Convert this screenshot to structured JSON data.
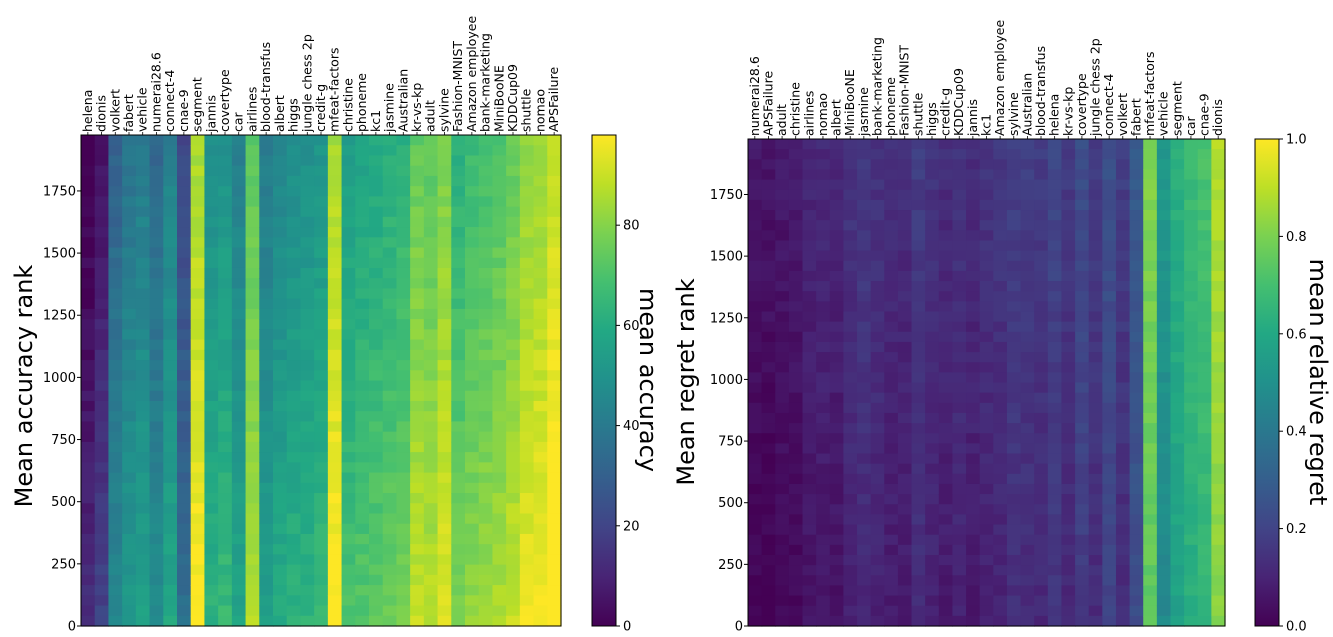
{
  "chart_data": [
    {
      "type": "heatmap",
      "ylabel": "Mean accuracy rank",
      "columns": [
        "helena",
        "dionis",
        "volkert",
        "fabert",
        "vehicle",
        "numerai28.6",
        "connect-4",
        "cnae-9",
        "segment",
        "jannis",
        "covertype",
        "car",
        "airlines",
        "blood-transfus",
        "albert",
        "higgs",
        "jungle chess 2p",
        "credit-g",
        "mfeat-factors",
        "christine",
        "phoneme",
        "kc1",
        "jasmine",
        "Australian",
        "kr-vs-kp",
        "adult",
        "sylvine",
        "Fashion-MNIST",
        "Amazon employee",
        "bank-marketing",
        "MiniBooNE",
        "KDDCup09",
        "shuttle",
        "nomao",
        "APSFailure"
      ],
      "column_mean_values": [
        5,
        12,
        38,
        45,
        48,
        40,
        50,
        28,
        92,
        55,
        58,
        50,
        80,
        48,
        52,
        55,
        56,
        58,
        92,
        62,
        64,
        66,
        68,
        70,
        82,
        80,
        86,
        70,
        74,
        76,
        78,
        82,
        88,
        90,
        96
      ],
      "yticks": [
        0,
        250,
        500,
        750,
        1000,
        1250,
        1500,
        1750
      ],
      "ylim": [
        0,
        1975
      ],
      "colorbar": {
        "label": "mean accuracy",
        "ticks": [
          0,
          20,
          40,
          60,
          80
        ],
        "range": [
          0,
          98
        ],
        "colormap": "viridis"
      }
    },
    {
      "type": "heatmap",
      "ylabel": "Mean regret rank",
      "columns": [
        "numerai28.6",
        "APSFailure",
        "adult",
        "christine",
        "airlines",
        "nomao",
        "albert",
        "MiniBooNE",
        "jasmine",
        "bank-marketing",
        "phoneme",
        "Fashion-MNIST",
        "shuttle",
        "higgs",
        "credit-g",
        "KDDCup09",
        "jannis",
        "kc1",
        "Amazon employee",
        "sylvine",
        "Australian",
        "blood-transfus",
        "helena",
        "kr-vs-kp",
        "covertype",
        "jungle chess 2p",
        "connect-4",
        "volkert",
        "fabert",
        "mfeat-factors",
        "vehicle",
        "segment",
        "car",
        "cnae-9",
        "dionis"
      ],
      "column_mean_values": [
        0.03,
        0.03,
        0.04,
        0.05,
        0.08,
        0.09,
        0.08,
        0.12,
        0.14,
        0.12,
        0.1,
        0.1,
        0.15,
        0.12,
        0.1,
        0.12,
        0.1,
        0.12,
        0.13,
        0.16,
        0.15,
        0.14,
        0.18,
        0.14,
        0.2,
        0.15,
        0.22,
        0.15,
        0.26,
        0.78,
        0.5,
        0.6,
        0.65,
        0.68,
        0.85
      ],
      "yticks": [
        0,
        250,
        500,
        750,
        1000,
        1250,
        1500,
        1750
      ],
      "ylim": [
        0,
        1975
      ],
      "colorbar": {
        "label": "mean relative regret",
        "ticks": [
          0.0,
          0.2,
          0.4,
          0.6,
          0.8,
          1.0
        ],
        "range": [
          0,
          1
        ],
        "colormap": "viridis"
      }
    }
  ]
}
